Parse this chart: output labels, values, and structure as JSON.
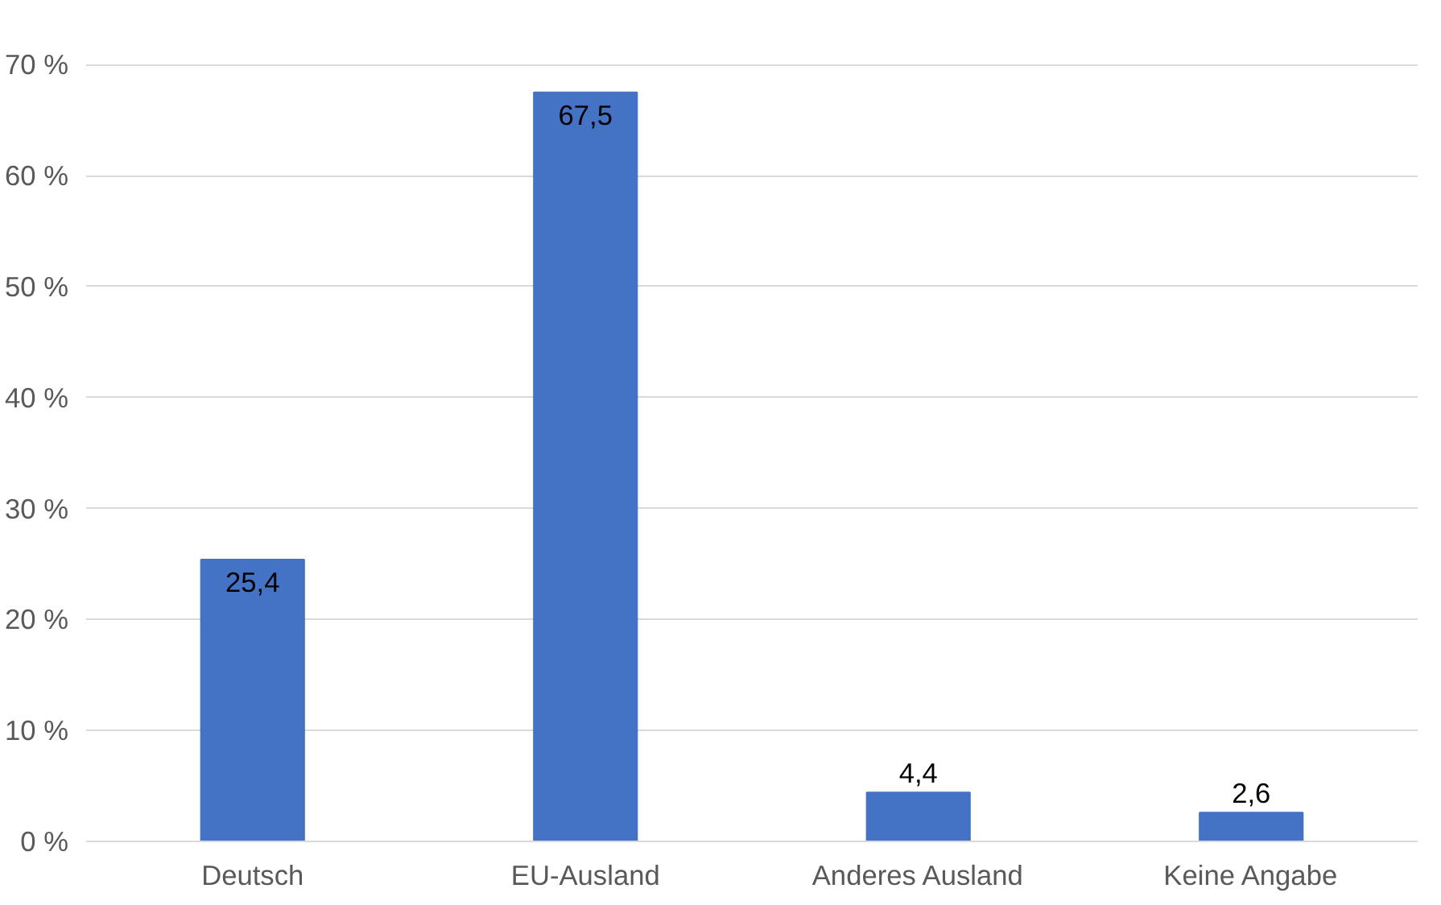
{
  "chart_data": {
    "type": "bar",
    "categories": [
      "Deutsch",
      "EU-Ausland",
      "Anderes Ausland",
      "Keine Angabe"
    ],
    "values": [
      25.4,
      67.5,
      4.4,
      2.6
    ],
    "color": "#4472c4",
    "value_labels": [
      "25,4",
      "67,5",
      "4,4",
      "2,6"
    ],
    "ylim": [
      0,
      70
    ],
    "yticks": [
      {
        "value": 0,
        "label": "0 %"
      },
      {
        "value": 10,
        "label": "10 %"
      },
      {
        "value": 20,
        "label": "20 %"
      },
      {
        "value": 30,
        "label": "30 %"
      },
      {
        "value": 40,
        "label": "40 %"
      },
      {
        "value": 50,
        "label": "50 %"
      },
      {
        "value": 60,
        "label": "60 %"
      },
      {
        "value": 70,
        "label": "70 %"
      }
    ],
    "grid": "y"
  }
}
